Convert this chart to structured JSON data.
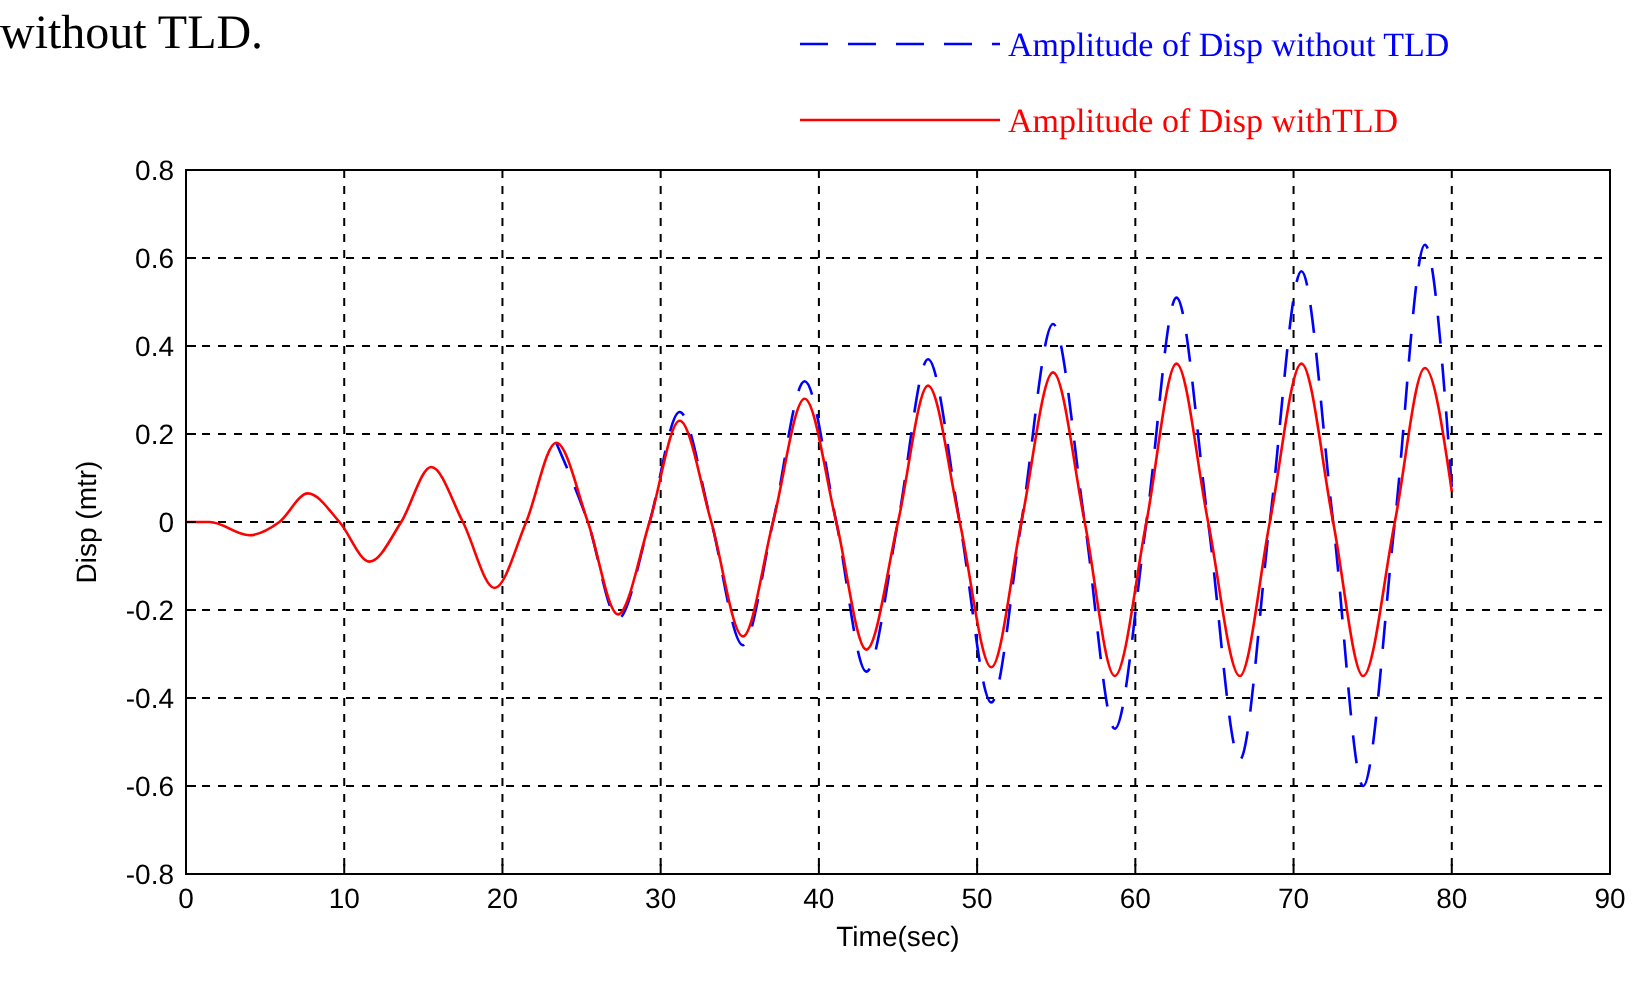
{
  "chart_data": {
    "type": "line",
    "xlabel": "Time(sec)",
    "ylabel": "Disp (mtr)",
    "annotations": [
      "without TLD."
    ],
    "xlim": [
      0,
      90
    ],
    "xticks": [
      0,
      10,
      20,
      30,
      40,
      50,
      60,
      70,
      80,
      90
    ],
    "ylim": [
      -0.8,
      0.8
    ],
    "yticks": [
      -0.8,
      -0.6,
      -0.4,
      -0.2,
      0,
      0.2,
      0.4,
      0.6,
      0.8
    ],
    "grid": true,
    "legend": "top right",
    "x": [
      0,
      1.5,
      4,
      5.9,
      7.7,
      9.7,
      11.6,
      13.6,
      15.5,
      17.5,
      19.5,
      21.5,
      23.4,
      25.4,
      27.3,
      29.3,
      31.2,
      33.2,
      35.2,
      37.1,
      39.1,
      41.1,
      43,
      45,
      46.9,
      48.9,
      50.9,
      52.8,
      54.8,
      56.8,
      58.7,
      60.7,
      62.6,
      64.6,
      66.6,
      68.5,
      70.5,
      72.5,
      74.4,
      76.4,
      78.3,
      80
    ],
    "series": [
      {
        "name": "Amplitude of Disp without TLD",
        "color": "#0000ff",
        "line_style": "dashed",
        "values": [
          null,
          null,
          null,
          null,
          null,
          null,
          null,
          null,
          null,
          null,
          null,
          null,
          0.18,
          0,
          -0.22,
          0,
          0.25,
          0,
          -0.28,
          0,
          0.32,
          0,
          -0.34,
          0,
          0.37,
          0,
          -0.41,
          0,
          0.45,
          0,
          -0.47,
          0,
          0.51,
          0,
          -0.54,
          0,
          0.57,
          0,
          -0.6,
          0,
          0.63,
          0.08
        ]
      },
      {
        "name": "Amplitude of Disp withTLD",
        "color": "#ff0000",
        "line_style": "solid",
        "values": [
          0,
          0,
          -0.03,
          0,
          0.065,
          0,
          -0.09,
          0,
          0.125,
          0,
          -0.15,
          0,
          0.18,
          0,
          -0.21,
          0,
          0.23,
          0,
          -0.26,
          0,
          0.28,
          0,
          -0.29,
          0,
          0.31,
          0,
          -0.33,
          0,
          0.34,
          0,
          -0.35,
          0,
          0.36,
          0,
          -0.35,
          0,
          0.36,
          0,
          -0.35,
          0,
          0.35,
          0.07
        ]
      }
    ]
  }
}
